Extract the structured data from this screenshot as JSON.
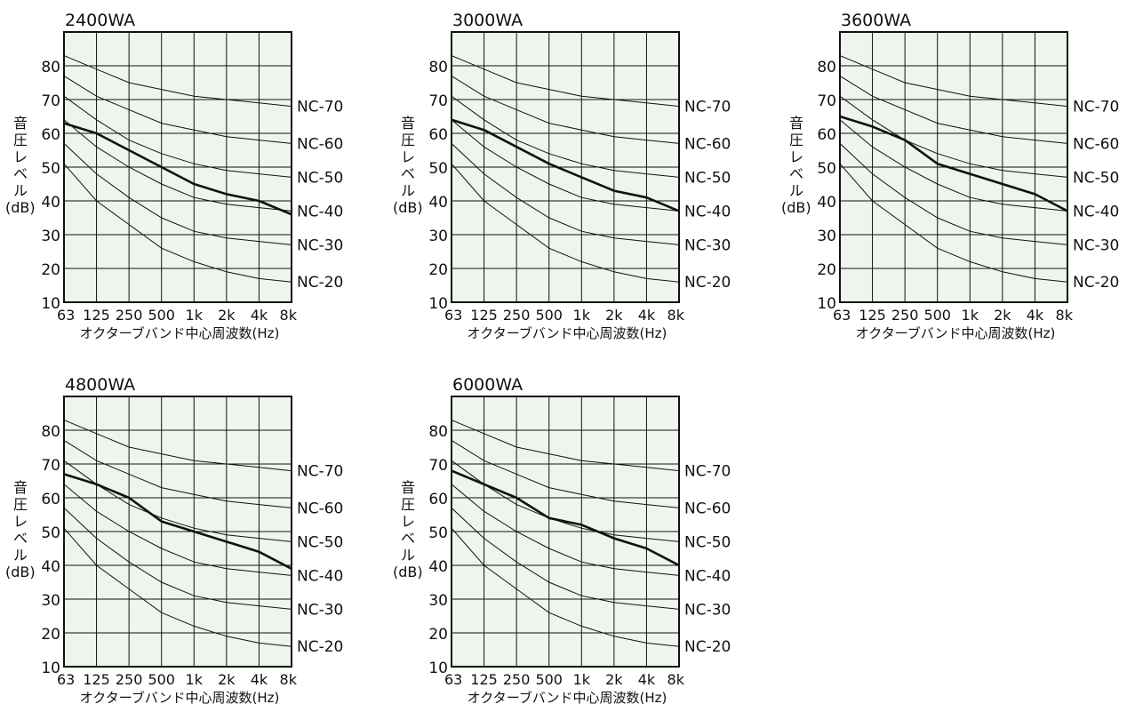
{
  "charts": [
    {
      "title": "2400WA",
      "x_labels": [
        "63",
        "125",
        "250",
        "500",
        "1k",
        "2k",
        "4k",
        "8k"
      ],
      "y_ticks": [
        10,
        20,
        30,
        40,
        50,
        60,
        70,
        80
      ],
      "y_label_lines": [
        "音",
        "圧",
        "レ",
        "ベ",
        "ル",
        "(dB)"
      ],
      "x_label": "オクターブバンド中心周波数(Hz)",
      "series": [
        {
          "values": [
            63,
            60,
            55,
            50,
            45,
            42,
            40,
            36
          ]
        }
      ]
    },
    {
      "title": "3000WA",
      "x_labels": [
        "63",
        "125",
        "250",
        "500",
        "1k",
        "2k",
        "4k",
        "8k"
      ],
      "y_ticks": [
        10,
        20,
        30,
        40,
        50,
        60,
        70,
        80
      ],
      "y_label_lines": [
        "音",
        "圧",
        "レ",
        "ベ",
        "ル",
        "(dB)"
      ],
      "x_label": "オクターブバンド中心周波数(Hz)",
      "series": [
        {
          "values": [
            64,
            61,
            56,
            51,
            47,
            43,
            41,
            37
          ]
        }
      ]
    },
    {
      "title": "3600WA",
      "x_labels": [
        "63",
        "125",
        "250",
        "500",
        "1k",
        "2k",
        "4k",
        "8k"
      ],
      "y_ticks": [
        10,
        20,
        30,
        40,
        50,
        60,
        70,
        80
      ],
      "y_label_lines": [
        "音",
        "圧",
        "レ",
        "ベ",
        "ル",
        "(dB)"
      ],
      "x_label": "オクターブバンド中心周波数(Hz)",
      "series": [
        {
          "values": [
            65,
            62,
            58,
            51,
            48,
            45,
            42,
            37
          ]
        }
      ]
    },
    {
      "title": "4800WA",
      "x_labels": [
        "63",
        "125",
        "250",
        "500",
        "1k",
        "2k",
        "4k",
        "8k"
      ],
      "y_ticks": [
        10,
        20,
        30,
        40,
        50,
        60,
        70,
        80
      ],
      "y_label_lines": [
        "音",
        "圧",
        "レ",
        "ベ",
        "ル",
        "(dB)"
      ],
      "x_label": "オクターブバンド中心周波数(Hz)",
      "series": [
        {
          "values": [
            67,
            64,
            60,
            53,
            50,
            47,
            44,
            39
          ]
        }
      ]
    },
    {
      "title": "6000WA",
      "x_labels": [
        "63",
        "125",
        "250",
        "500",
        "1k",
        "2k",
        "4k",
        "8k"
      ],
      "y_ticks": [
        10,
        20,
        30,
        40,
        50,
        60,
        70,
        80
      ],
      "y_label_lines": [
        "音",
        "圧",
        "レ",
        "ベ",
        "ル",
        "(dB)"
      ],
      "x_label": "オクターブバンド中心周波数(Hz)",
      "series": [
        {
          "values": [
            68,
            64,
            60,
            54,
            52,
            48,
            45,
            40
          ]
        }
      ]
    }
  ],
  "nc_curves": [
    {
      "label": "NC-70",
      "values": [
        83,
        79,
        75,
        73,
        71,
        70,
        69,
        68
      ]
    },
    {
      "label": "NC-60",
      "values": [
        77,
        71,
        67,
        63,
        61,
        59,
        58,
        57
      ]
    },
    {
      "label": "NC-50",
      "values": [
        71,
        64,
        58,
        54,
        51,
        49,
        48,
        47
      ]
    },
    {
      "label": "NC-40",
      "values": [
        64,
        56,
        50,
        45,
        41,
        39,
        38,
        37
      ]
    },
    {
      "label": "NC-30",
      "values": [
        57,
        48,
        41,
        35,
        31,
        29,
        28,
        27
      ]
    },
    {
      "label": "NC-20",
      "values": [
        51,
        40,
        33,
        26,
        22,
        19,
        17,
        16
      ]
    }
  ],
  "chart_data": [
    {
      "type": "line",
      "title": "2400WA",
      "categories": [
        "63",
        "125",
        "250",
        "500",
        "1k",
        "2k",
        "4k",
        "8k"
      ],
      "ylim": [
        10,
        90
      ],
      "xlabel": "オクターブバンド中心周波数(Hz)",
      "ylabel": "音圧レベル(dB)",
      "series": [
        {
          "values": [
            63,
            60,
            55,
            50,
            45,
            42,
            40,
            36
          ]
        }
      ]
    },
    {
      "type": "line",
      "title": "3000WA",
      "categories": [
        "63",
        "125",
        "250",
        "500",
        "1k",
        "2k",
        "4k",
        "8k"
      ],
      "ylim": [
        10,
        90
      ],
      "xlabel": "オクターブバンド中心周波数(Hz)",
      "ylabel": "音圧レベル(dB)",
      "series": [
        {
          "values": [
            64,
            61,
            56,
            51,
            47,
            43,
            41,
            37
          ]
        }
      ]
    },
    {
      "type": "line",
      "title": "3600WA",
      "categories": [
        "63",
        "125",
        "250",
        "500",
        "1k",
        "2k",
        "4k",
        "8k"
      ],
      "ylim": [
        10,
        90
      ],
      "xlabel": "オクターブバンド中心周波数(Hz)",
      "ylabel": "音圧レベル(dB)",
      "series": [
        {
          "values": [
            65,
            62,
            58,
            51,
            48,
            45,
            42,
            37
          ]
        }
      ]
    },
    {
      "type": "line",
      "title": "4800WA",
      "categories": [
        "63",
        "125",
        "250",
        "500",
        "1k",
        "2k",
        "4k",
        "8k"
      ],
      "ylim": [
        10,
        90
      ],
      "xlabel": "オクターブバンド中心周波数(Hz)",
      "ylabel": "音圧レベル(dB)",
      "series": [
        {
          "values": [
            67,
            64,
            60,
            53,
            50,
            47,
            44,
            39
          ]
        }
      ]
    },
    {
      "type": "line",
      "title": "6000WA",
      "categories": [
        "63",
        "125",
        "250",
        "500",
        "1k",
        "2k",
        "4k",
        "8k"
      ],
      "ylim": [
        10,
        90
      ],
      "xlabel": "オクターブバンド中心周波数(Hz)",
      "ylabel": "音圧レベル(dB)",
      "series": [
        {
          "values": [
            68,
            64,
            60,
            54,
            52,
            48,
            45,
            40
          ]
        }
      ]
    }
  ],
  "colors": {
    "plot_bg": "#eef5ec",
    "grid": "#111111",
    "series": "#111111"
  }
}
